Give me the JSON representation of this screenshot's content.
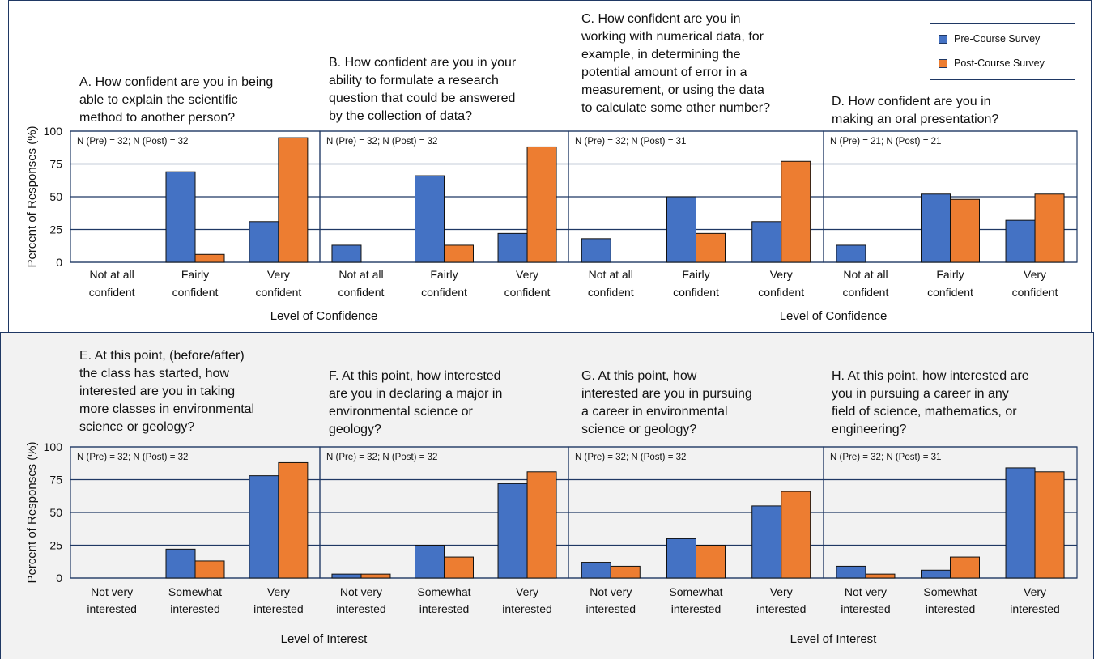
{
  "legend": {
    "pre_label": "Pre-Course Survey",
    "post_label": "Post-Course Survey",
    "pre_color": "#4472c4",
    "post_color": "#ed7d31"
  },
  "top_row": {
    "ylabel": "Percent of Responses (%)",
    "xlabel_left": "Level of Confidence",
    "xlabel_right": "Level of Confidence"
  },
  "bottom_row": {
    "ylabel": "Percent of Responses (%)",
    "xlabel_left": "Level of Interest",
    "xlabel_right": "Level of Interest"
  },
  "chart_data": [
    {
      "type": "bar",
      "row": "top",
      "title": "A. How confident are you in being\nable to explain the scientific\nmethod to another person?",
      "n_label": "N (Pre) = 32; N (Post) = 32",
      "categories": [
        "Not at all\nconfident",
        "Fairly\nconfident",
        "Very\nconfident"
      ],
      "series": [
        {
          "name": "Pre-Course Survey",
          "values": [
            0,
            69,
            31
          ]
        },
        {
          "name": "Post-Course Survey",
          "values": [
            0,
            6,
            95
          ]
        }
      ],
      "ylim": [
        0,
        100
      ],
      "yticks": [
        0,
        25,
        50,
        75,
        100
      ]
    },
    {
      "type": "bar",
      "row": "top",
      "title": "B. How confident are you in your\nability to formulate a research\nquestion that could be answered\nby the collection of data?",
      "n_label": "N (Pre) = 32; N (Post) = 32",
      "categories": [
        "Not at all\nconfident",
        "Fairly\nconfident",
        "Very\nconfident"
      ],
      "series": [
        {
          "name": "Pre-Course Survey",
          "values": [
            13,
            66,
            22
          ]
        },
        {
          "name": "Post-Course Survey",
          "values": [
            0,
            13,
            88
          ]
        }
      ],
      "ylim": [
        0,
        100
      ],
      "yticks": [
        0,
        25,
        50,
        75,
        100
      ]
    },
    {
      "type": "bar",
      "row": "top",
      "title": "C. How confident are you in\nworking with numerical data, for\nexample, in determining the\npotential amount of error in a\nmeasurement, or using the data\nto calculate some other number?",
      "n_label": "N (Pre) = 32; N (Post) = 31",
      "categories": [
        "Not at all\nconfident",
        "Fairly\nconfident",
        "Very\nconfident"
      ],
      "series": [
        {
          "name": "Pre-Course Survey",
          "values": [
            18,
            50,
            31
          ]
        },
        {
          "name": "Post-Course Survey",
          "values": [
            0,
            22,
            77
          ]
        }
      ],
      "ylim": [
        0,
        100
      ],
      "yticks": [
        0,
        25,
        50,
        75,
        100
      ]
    },
    {
      "type": "bar",
      "row": "top",
      "title": "D. How confident are you in\nmaking an oral presentation?",
      "n_label": "N (Pre) = 21; N (Post) = 21",
      "categories": [
        "Not at all\nconfident",
        "Fairly\nconfident",
        "Very\nconfident"
      ],
      "series": [
        {
          "name": "Pre-Course Survey",
          "values": [
            13,
            52,
            32
          ]
        },
        {
          "name": "Post-Course Survey",
          "values": [
            0,
            48,
            52
          ]
        }
      ],
      "ylim": [
        0,
        100
      ],
      "yticks": [
        0,
        25,
        50,
        75,
        100
      ]
    },
    {
      "type": "bar",
      "row": "bottom",
      "title": "E. At this point, (before/after)\nthe class has started, how\ninterested are you in taking\nmore classes in environmental\nscience or geology?",
      "n_label": "N (Pre) = 32; N (Post) = 32",
      "categories": [
        "Not very\ninterested",
        "Somewhat\ninterested",
        "Very\ninterested"
      ],
      "series": [
        {
          "name": "Pre-Course Survey",
          "values": [
            0,
            22,
            78
          ]
        },
        {
          "name": "Post-Course Survey",
          "values": [
            0,
            13,
            88
          ]
        }
      ],
      "ylim": [
        0,
        100
      ],
      "yticks": [
        0,
        25,
        50,
        75,
        100
      ]
    },
    {
      "type": "bar",
      "row": "bottom",
      "title": "F. At this point, how interested\nare you in declaring a major in\nenvironmental science or\ngeology?",
      "n_label": "N (Pre) = 32; N (Post) = 32",
      "categories": [
        "Not very\ninterested",
        "Somewhat\ninterested",
        "Very\ninterested"
      ],
      "series": [
        {
          "name": "Pre-Course Survey",
          "values": [
            3,
            25,
            72
          ]
        },
        {
          "name": "Post-Course Survey",
          "values": [
            3,
            16,
            81
          ]
        }
      ],
      "ylim": [
        0,
        100
      ],
      "yticks": [
        0,
        25,
        50,
        75,
        100
      ]
    },
    {
      "type": "bar",
      "row": "bottom",
      "title": "G. At this point, how\ninterested are you in pursuing\na career in environmental\nscience or geology?",
      "n_label": "N (Pre) = 32; N (Post) = 32",
      "categories": [
        "Not very\ninterested",
        "Somewhat\ninterested",
        "Very\ninterested"
      ],
      "series": [
        {
          "name": "Pre-Course Survey",
          "values": [
            12,
            30,
            55
          ]
        },
        {
          "name": "Post-Course Survey",
          "values": [
            9,
            25,
            66
          ]
        }
      ],
      "ylim": [
        0,
        100
      ],
      "yticks": [
        0,
        25,
        50,
        75,
        100
      ]
    },
    {
      "type": "bar",
      "row": "bottom",
      "title": "H. At this point, how interested are\nyou in pursuing a career in any\nfield of science, mathematics, or\nengineering?",
      "n_label": "N (Pre) = 32; N (Post) = 31",
      "categories": [
        "Not very\ninterested",
        "Somewhat\ninterested",
        "Very\ninterested"
      ],
      "series": [
        {
          "name": "Pre-Course Survey",
          "values": [
            9,
            6,
            84
          ]
        },
        {
          "name": "Post-Course Survey",
          "values": [
            3,
            16,
            81
          ]
        }
      ],
      "ylim": [
        0,
        100
      ],
      "yticks": [
        0,
        25,
        50,
        75,
        100
      ]
    }
  ]
}
